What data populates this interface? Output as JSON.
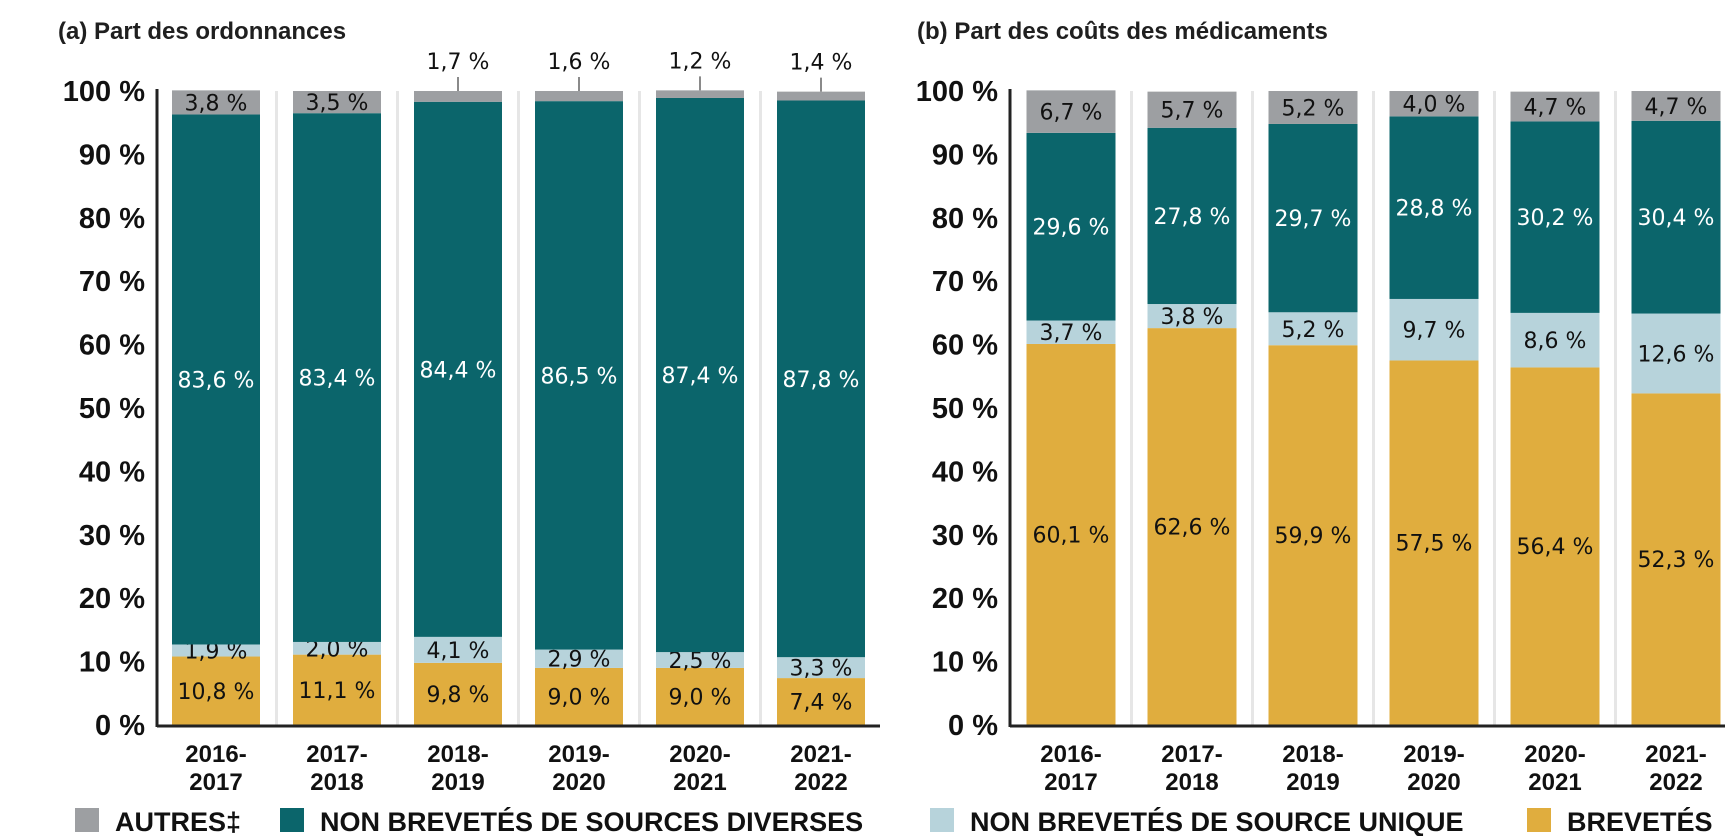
{
  "colors": {
    "autres": "#9d9fa2",
    "diverses": "#0b656b",
    "unique": "#b7d3db",
    "brevetes": "#e0ad3e",
    "gridline": "#e6e6e6",
    "axis": "#222222"
  },
  "legend": [
    {
      "key": "autres",
      "label": "AUTRES‡"
    },
    {
      "key": "diverses",
      "label": "NON BREVETÉS DE SOURCES DIVERSES"
    },
    {
      "key": "unique",
      "label": "NON BREVETÉS DE SOURCE UNIQUE"
    },
    {
      "key": "brevetes",
      "label": "BREVETÉS"
    }
  ],
  "chart_data": [
    {
      "type": "bar",
      "stacked": true,
      "title": "(a) Part des ordonnances",
      "categories": [
        [
          "2016-",
          "2017"
        ],
        [
          "2017-",
          "2018"
        ],
        [
          "2018-",
          "2019"
        ],
        [
          "2019-",
          "2020"
        ],
        [
          "2020-",
          "2021"
        ],
        [
          "2021-",
          "2022"
        ]
      ],
      "yticks": [
        "0 %",
        "10 %",
        "20 %",
        "30 %",
        "40 %",
        "50 %",
        "60 %",
        "70 %",
        "80 %",
        "90 %",
        "100 %"
      ],
      "ylim": [
        0,
        100
      ],
      "series": [
        {
          "key": "brevetes",
          "name": "BREVETÉS",
          "values": [
            10.8,
            11.1,
            9.8,
            9.0,
            9.0,
            7.4
          ],
          "labels": [
            "10,8 %",
            "11,1 %",
            "9,8 %",
            "9,0 %",
            "9,0 %",
            "7,4 %"
          ]
        },
        {
          "key": "unique",
          "name": "NON BREVETÉS DE SOURCE UNIQUE",
          "values": [
            1.9,
            2.0,
            4.1,
            2.9,
            2.5,
            3.3
          ],
          "labels": [
            "1,9 %",
            "2,0 %",
            "4,1 %",
            "2,9 %",
            "2,5 %",
            "3,3 %"
          ]
        },
        {
          "key": "diverses",
          "name": "NON BREVETÉS DE SOURCES DIVERSES",
          "values": [
            83.6,
            83.4,
            84.4,
            86.5,
            87.4,
            87.8
          ],
          "labels": [
            "83,6 %",
            "83,4 %",
            "84,4 %",
            "86,5 %",
            "87,4 %",
            "87,8 %"
          ]
        },
        {
          "key": "autres",
          "name": "AUTRES‡",
          "values": [
            3.8,
            3.5,
            1.7,
            1.6,
            1.2,
            1.4
          ],
          "labels": [
            "3,8 %",
            "3,5 %",
            "1,7 %",
            "1,6 %",
            "1,2 %",
            "1,4 %"
          ],
          "label_above": [
            false,
            false,
            true,
            true,
            true,
            true
          ]
        }
      ]
    },
    {
      "type": "bar",
      "stacked": true,
      "title": "(b) Part des coûts des médicaments",
      "categories": [
        [
          "2016-",
          "2017"
        ],
        [
          "2017-",
          "2018"
        ],
        [
          "2018-",
          "2019"
        ],
        [
          "2019-",
          "2020"
        ],
        [
          "2020-",
          "2021"
        ],
        [
          "2021-",
          "2022"
        ]
      ],
      "yticks": [
        "0 %",
        "10 %",
        "20 %",
        "30 %",
        "40 %",
        "50 %",
        "60 %",
        "70 %",
        "80 %",
        "90 %",
        "100 %"
      ],
      "ylim": [
        0,
        100
      ],
      "series": [
        {
          "key": "brevetes",
          "name": "BREVETÉS",
          "values": [
            60.1,
            62.6,
            59.9,
            57.5,
            56.4,
            52.3
          ],
          "labels": [
            "60,1 %",
            "62,6 %",
            "59,9 %",
            "57,5 %",
            "56,4 %",
            "52,3 %"
          ]
        },
        {
          "key": "unique",
          "name": "NON BREVETÉS DE SOURCE UNIQUE",
          "values": [
            3.7,
            3.8,
            5.2,
            9.7,
            8.6,
            12.6
          ],
          "labels": [
            "3,7 %",
            "3,8 %",
            "5,2 %",
            "9,7 %",
            "8,6 %",
            "12,6 %"
          ]
        },
        {
          "key": "diverses",
          "name": "NON BREVETÉS DE SOURCES DIVERSES",
          "values": [
            29.6,
            27.8,
            29.7,
            28.8,
            30.2,
            30.4
          ],
          "labels": [
            "29,6 %",
            "27,8 %",
            "29,7 %",
            "28,8 %",
            "30,2 %",
            "30,4 %"
          ]
        },
        {
          "key": "autres",
          "name": "AUTRES‡",
          "values": [
            6.7,
            5.7,
            5.2,
            4.0,
            4.7,
            4.7
          ],
          "labels": [
            "6,7 %",
            "5,7 %",
            "5,2 %",
            "4,0 %",
            "4,7 %",
            "4,7 %"
          ],
          "label_above": [
            false,
            false,
            false,
            false,
            false,
            false
          ]
        }
      ]
    }
  ]
}
